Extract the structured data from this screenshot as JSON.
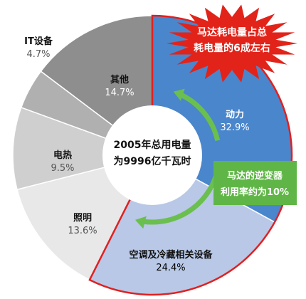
{
  "chart_data": {
    "type": "pie",
    "variant": "donut",
    "center_title_line1": "2005年总用电量",
    "center_title_line2": "为9996亿千瓦时",
    "slices": [
      {
        "name": "动力",
        "value": 32.9,
        "label": "32.9%",
        "color": "#4a86cc",
        "label_color": "#ffffff"
      },
      {
        "name": "空调及冷藏相关设备",
        "value": 24.4,
        "label": "24.4%",
        "color": "#b8c8e6",
        "label_color": "#000000"
      },
      {
        "name": "照明",
        "value": 13.6,
        "label": "13.6%",
        "color": "#e8e8e8",
        "label_color": "#555555"
      },
      {
        "name": "电热",
        "value": 9.5,
        "label": "9.5%",
        "color": "#cfcfcf",
        "label_color": "#555555"
      },
      {
        "name": "IT设备",
        "value": 4.7,
        "label": "4.7%",
        "color": "#b0b0b0",
        "label_color": "#555555"
      },
      {
        "name": "其他",
        "value": 14.7,
        "label": "14.7%",
        "color": "#8e8e8e",
        "label_color": "#ffffff"
      }
    ],
    "highlight_border_color": "#e02020",
    "arrow_color": "#6bbf4e"
  },
  "callouts": {
    "burst_line1": "马达耗电量占总",
    "burst_line2": "耗电量的6成左右",
    "burst_color": "#e2231a",
    "green_line1": "马达的逆变器",
    "green_line2": "利用率约为10%",
    "green_color": "#5fb646"
  }
}
